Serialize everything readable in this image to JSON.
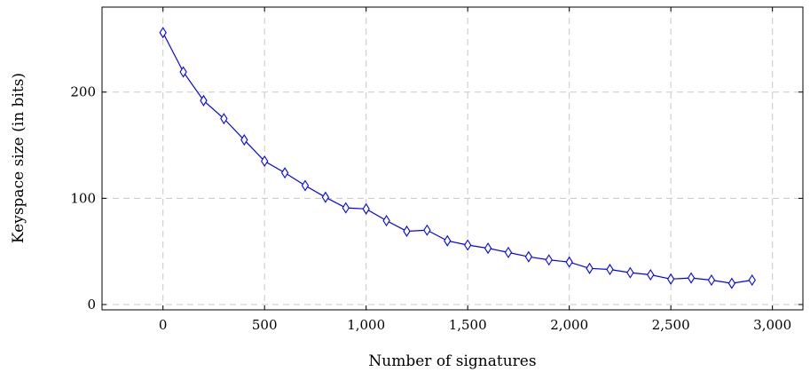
{
  "chart_data": {
    "type": "line",
    "xlabel": "Number of signatures",
    "ylabel": "Keyspace size (in bits)",
    "xlim": [
      -300,
      3150
    ],
    "ylim": [
      -5,
      280
    ],
    "xticks": [
      0,
      500,
      1000,
      1500,
      2000,
      2500,
      3000
    ],
    "xtick_labels": [
      "0",
      "500",
      "1,000",
      "1,500",
      "2,000",
      "2,500",
      "3,000"
    ],
    "yticks": [
      0,
      100,
      200
    ],
    "ytick_labels": [
      "0",
      "100",
      "200"
    ],
    "grid": true,
    "marker": "diamond",
    "color": "#0000ff",
    "series": [
      {
        "x": [
          0,
          100,
          200,
          300,
          400,
          500,
          600,
          700,
          800,
          900,
          1000,
          1100,
          1200,
          1300,
          1400,
          1500,
          1600,
          1700,
          1800,
          1900,
          2000,
          2100,
          2200,
          2300,
          2400,
          2500,
          2600,
          2700,
          2800,
          2900
        ],
        "y": [
          256,
          219,
          192,
          175,
          155,
          135,
          124,
          112,
          101,
          91,
          90,
          79,
          69,
          70,
          60,
          56,
          53,
          49,
          45,
          42,
          40,
          34,
          33,
          30,
          28,
          24,
          25,
          23,
          20,
          23
        ]
      }
    ]
  }
}
